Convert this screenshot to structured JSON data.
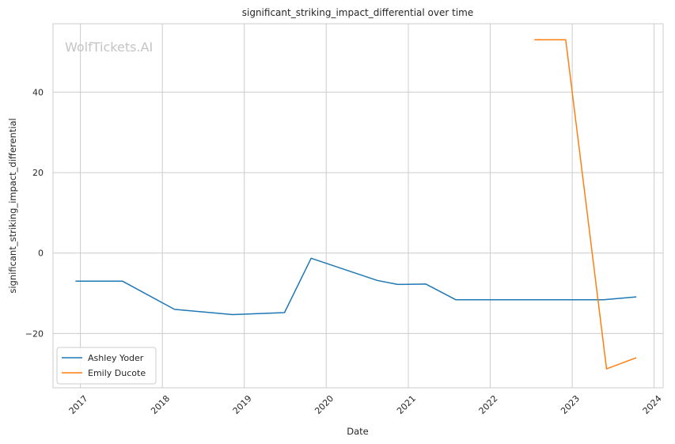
{
  "chart_data": {
    "type": "line",
    "title": "significant_striking_impact_differential over time",
    "xlabel": "Date",
    "ylabel": "significant_striking_impact_differential",
    "watermark": "WolfTickets.AI",
    "x_ticks": [
      "2017",
      "2018",
      "2019",
      "2020",
      "2021",
      "2022",
      "2023",
      "2024"
    ],
    "y_ticks": [
      -20,
      0,
      20,
      40
    ],
    "xlim": [
      "2016-09-01",
      "2024-02-10"
    ],
    "ylim": [
      -33.5,
      57
    ],
    "grid": true,
    "legend_position": "lower-left",
    "series": [
      {
        "name": "Ashley Yoder",
        "color": "#1f77b4",
        "points": [
          {
            "x": "2016-12-10",
            "y": -7
          },
          {
            "x": "2017-07-08",
            "y": -7
          },
          {
            "x": "2018-02-24",
            "y": -14
          },
          {
            "x": "2018-11-10",
            "y": -15.3
          },
          {
            "x": "2019-06-29",
            "y": -14.8
          },
          {
            "x": "2019-10-26",
            "y": -1.3
          },
          {
            "x": "2020-08-15",
            "y": -6.8
          },
          {
            "x": "2020-11-14",
            "y": -7.8
          },
          {
            "x": "2021-03-20",
            "y": -7.7
          },
          {
            "x": "2021-07-31",
            "y": -11.6
          },
          {
            "x": "2023-05-20",
            "y": -11.6
          },
          {
            "x": "2023-10-14",
            "y": -10.9
          }
        ]
      },
      {
        "name": "Emily Ducote",
        "color": "#ff7f0e",
        "points": [
          {
            "x": "2022-07-16",
            "y": 53
          },
          {
            "x": "2022-12-03",
            "y": 53
          },
          {
            "x": "2023-06-03",
            "y": -28.8
          },
          {
            "x": "2023-10-14",
            "y": -26
          }
        ]
      }
    ]
  }
}
